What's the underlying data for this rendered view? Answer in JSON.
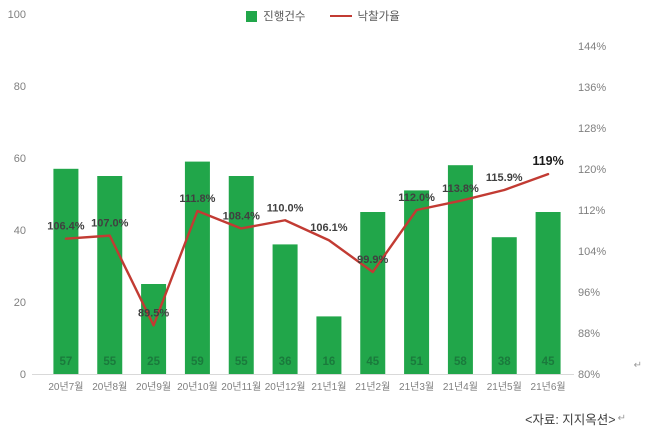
{
  "legend": {
    "bar_label": "진행건수",
    "line_label": "낙찰가율"
  },
  "source_note": "<자료: 지지옥션>",
  "return_mark": "↵",
  "chart_data": {
    "type": "bar+line combo",
    "title": "",
    "categories": [
      "20년7월",
      "20년8월",
      "20년9월",
      "20년10월",
      "20년11월",
      "20년12월",
      "21년1월",
      "21년2월",
      "21년3월",
      "21년4월",
      "21년5월",
      "21년6월"
    ],
    "series": [
      {
        "name": "진행건수",
        "type": "bar",
        "axis": "left",
        "values": [
          57,
          55,
          25,
          59,
          55,
          36,
          16,
          45,
          51,
          58,
          38,
          45
        ],
        "color": "#21a64a",
        "label_color": "#1a7a3c"
      },
      {
        "name": "낙찰가율",
        "type": "line",
        "axis": "right",
        "values": [
          106.4,
          107.0,
          89.5,
          111.8,
          108.4,
          110.0,
          106.1,
          99.9,
          112.0,
          113.8,
          115.9,
          119.0
        ],
        "labels": [
          "106.4%",
          "107.0%",
          "89.5%",
          "111.8%",
          "108.4%",
          "110.0%",
          "106.1%",
          "99.9%",
          "112.0%",
          "113.8%",
          "115.9%",
          "119%"
        ],
        "color": "#c23b33",
        "label_color": "#404040",
        "last_label_color": "#1a1a1a"
      }
    ],
    "left_axis": {
      "min": 0,
      "max": 100,
      "step": 20,
      "ticks": [
        "0",
        "20",
        "40",
        "60",
        "80",
        "100"
      ]
    },
    "right_axis": {
      "min": 80,
      "max": 144,
      "step": 8,
      "ticks": [
        "80%",
        "88%",
        "96%",
        "104%",
        "112%",
        "120%",
        "128%",
        "136%",
        "144%"
      ]
    },
    "grid": "off",
    "legend_position": "top-center"
  }
}
